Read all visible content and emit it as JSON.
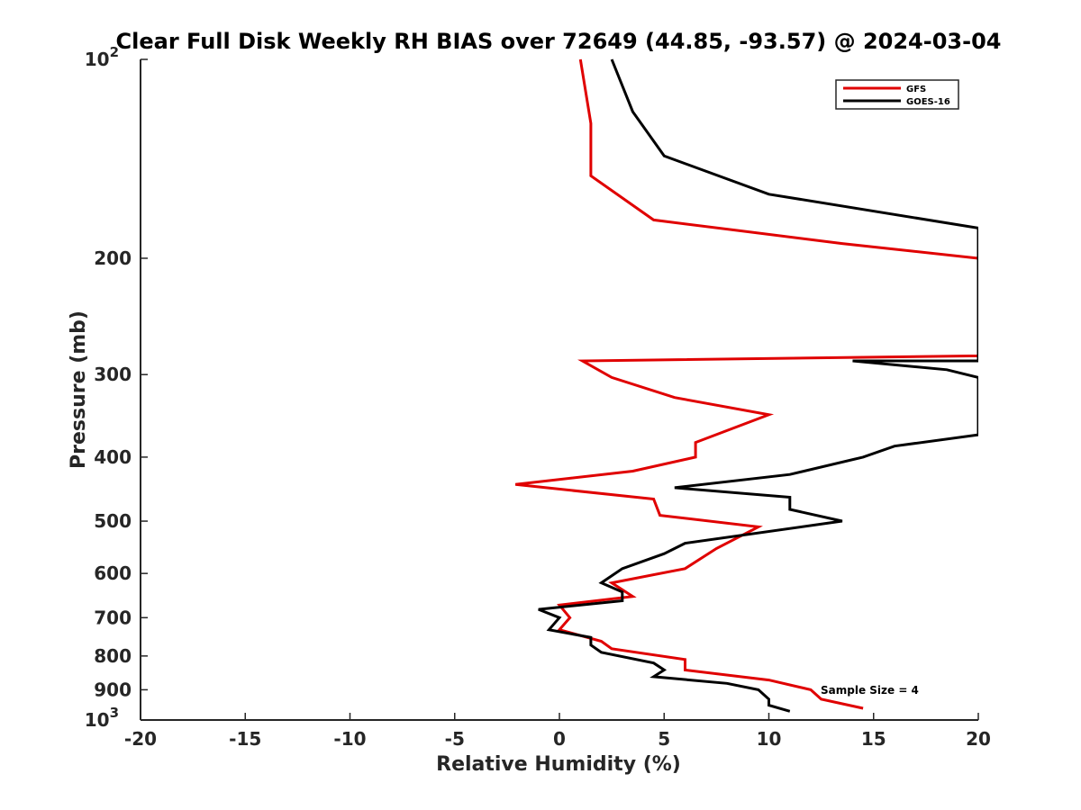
{
  "chart_data": {
    "type": "line",
    "title": "Clear Full Disk Weekly RH BIAS over 72649 (44.85, -93.57) @ 2024-03-04",
    "xlabel": "Relative Humidity (%)",
    "ylabel": "Pressure (mb)",
    "xlim": [
      -20,
      20
    ],
    "ylim": [
      100,
      1000
    ],
    "y_scale": "log",
    "y_reversed": true,
    "grid": false,
    "legend_position": "top-right",
    "x_ticks": [
      "-20",
      "-15",
      "-10",
      "-5",
      "0",
      "5",
      "10",
      "15",
      "20"
    ],
    "y_ticks": [
      {
        "base": "10",
        "exp": "2"
      },
      {
        "base": "200",
        "exp": ""
      },
      {
        "base": "300",
        "exp": ""
      },
      {
        "base": "400",
        "exp": ""
      },
      {
        "base": "500",
        "exp": ""
      },
      {
        "base": "600",
        "exp": ""
      },
      {
        "base": "700",
        "exp": ""
      },
      {
        "base": "800",
        "exp": ""
      },
      {
        "base": "900",
        "exp": ""
      },
      {
        "base": "10",
        "exp": "3"
      }
    ],
    "series": [
      {
        "name": "GFS",
        "color": "#e00000",
        "points": [
          [
            1.0,
            100
          ],
          [
            1.5,
            125
          ],
          [
            1.5,
            150
          ],
          [
            4.5,
            175
          ],
          [
            13.5,
            190
          ],
          [
            20,
            200
          ],
          [
            20,
            281
          ],
          [
            1.1,
            286
          ],
          [
            2.5,
            303
          ],
          [
            5.5,
            325
          ],
          [
            10.0,
            345
          ],
          [
            6.5,
            380
          ],
          [
            6.5,
            400
          ],
          [
            3.5,
            420
          ],
          [
            -2.1,
            440
          ],
          [
            4.5,
            463
          ],
          [
            4.8,
            490
          ],
          [
            9.5,
            510
          ],
          [
            7.5,
            550
          ],
          [
            6.0,
            590
          ],
          [
            2.5,
            620
          ],
          [
            3.5,
            650
          ],
          [
            0.0,
            670
          ],
          [
            0.5,
            700
          ],
          [
            0.0,
            730
          ],
          [
            2.0,
            760
          ],
          [
            2.5,
            780
          ],
          [
            6.0,
            810
          ],
          [
            6.0,
            840
          ],
          [
            10.0,
            870
          ],
          [
            12.0,
            900
          ],
          [
            12.5,
            930
          ],
          [
            14.5,
            960
          ]
        ]
      },
      {
        "name": "GOES-16",
        "color": "#000000",
        "points": [
          [
            2.5,
            100
          ],
          [
            3.5,
            120
          ],
          [
            5.0,
            140
          ],
          [
            10.0,
            160
          ],
          [
            20,
            180
          ],
          [
            20,
            286
          ],
          [
            14.0,
            286
          ],
          [
            18.5,
            295
          ],
          [
            20,
            303
          ],
          [
            20,
            370
          ],
          [
            16.0,
            385
          ],
          [
            14.5,
            400
          ],
          [
            11.0,
            425
          ],
          [
            5.5,
            445
          ],
          [
            11.0,
            460
          ],
          [
            11.0,
            480
          ],
          [
            13.5,
            500
          ],
          [
            6.0,
            540
          ],
          [
            5.0,
            560
          ],
          [
            3.0,
            590
          ],
          [
            2.0,
            620
          ],
          [
            3.0,
            640
          ],
          [
            3.0,
            660
          ],
          [
            -1.0,
            680
          ],
          [
            0.0,
            700
          ],
          [
            -0.5,
            730
          ],
          [
            1.5,
            750
          ],
          [
            1.5,
            770
          ],
          [
            2.0,
            790
          ],
          [
            4.5,
            820
          ],
          [
            5.0,
            840
          ],
          [
            4.5,
            860
          ],
          [
            8.0,
            880
          ],
          [
            9.5,
            900
          ],
          [
            10.0,
            930
          ],
          [
            10.0,
            950
          ],
          [
            11.0,
            970
          ]
        ]
      }
    ],
    "annotation": "Sample Size = 4"
  }
}
